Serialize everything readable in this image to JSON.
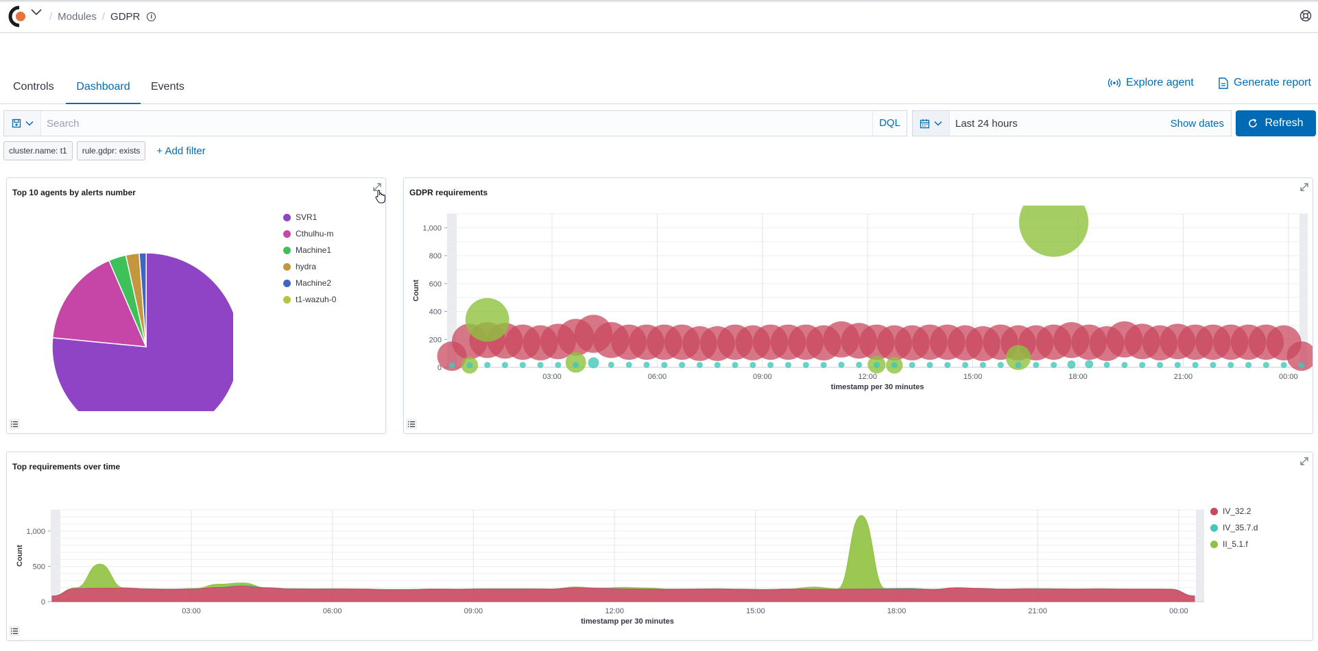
{
  "header": {
    "breadcrumbs": [
      "Modules",
      "GDPR"
    ],
    "logo_icon": "wazuh-logo-icon",
    "help_icon": "help-icon"
  },
  "tabs": [
    {
      "label": "Controls",
      "active": false
    },
    {
      "label": "Dashboard",
      "active": true
    },
    {
      "label": "Events",
      "active": false
    }
  ],
  "actions": {
    "explore_agent": "Explore agent",
    "generate_report": "Generate report"
  },
  "search": {
    "placeholder": "Search",
    "language": "DQL"
  },
  "date": {
    "range": "Last 24 hours",
    "show_dates": "Show dates",
    "refresh": "Refresh"
  },
  "filters": {
    "pills": [
      "cluster.name: t1",
      "rule.gdpr: exists"
    ],
    "add": "+ Add filter"
  },
  "panels": {
    "top_agents": {
      "title": "Top 10 agents by alerts number"
    },
    "gdpr_requirements": {
      "title": "GDPR requirements"
    },
    "top_requirements": {
      "title": "Top requirements over time"
    }
  },
  "colors": {
    "accent": "#006bb4",
    "svr1": "#8e44c4",
    "cthulhu": "#c546a6",
    "machine1": "#3fc15a",
    "hydra": "#c4973f",
    "machine2": "#3f64c4",
    "wazuh": "#b6c43f",
    "iv_32_2": "#c9485f",
    "iv_35_7_d": "#43c7b6",
    "ii_5_1_f": "#8fc23f"
  },
  "chart_data": [
    {
      "type": "pie",
      "title": "Top 10 agents by alerts number",
      "labels": [
        "SVR1",
        "Cthulhu-m",
        "Machine1",
        "hydra",
        "Machine2",
        "t1-wazuh-0"
      ],
      "values": [
        76.5,
        17,
        3,
        2.3,
        1.2,
        0
      ],
      "colors": [
        "#8e44c4",
        "#c546a6",
        "#3fc15a",
        "#c4973f",
        "#3f64c4",
        "#b6c43f"
      ],
      "legend": "right"
    },
    {
      "type": "scatter",
      "title": "GDPR requirements",
      "xlabel": "timestamp per 30 minutes",
      "ylabel": "Count",
      "ylim": [
        0,
        1100
      ],
      "yticks": [
        0,
        200,
        400,
        600,
        800,
        1000
      ],
      "ytick_labels": [
        "0",
        "200",
        "400",
        "600",
        "800",
        "1,000"
      ],
      "xticks": [
        "03:00",
        "06:00",
        "09:00",
        "12:00",
        "15:00",
        "18:00",
        "21:00",
        "00:00"
      ],
      "grid": true,
      "series": [
        {
          "name": "IV_32.2",
          "color": "#c9485f",
          "values": [
            80,
            185,
            195,
            190,
            180,
            175,
            185,
            215,
            240,
            195,
            180,
            180,
            180,
            180,
            170,
            170,
            180,
            175,
            180,
            180,
            180,
            175,
            200,
            190,
            180,
            175,
            175,
            180,
            180,
            175,
            170,
            180,
            175,
            175,
            180,
            195,
            180,
            170,
            200,
            185,
            175,
            185,
            180,
            180,
            180,
            180,
            180,
            175,
            80
          ]
        },
        {
          "name": "IV_35.7.d",
          "color": "#43c7b6",
          "values": [
            0,
            0,
            2,
            2,
            2,
            2,
            2,
            2,
            18,
            3,
            3,
            3,
            2,
            2,
            2,
            2,
            2,
            2,
            2,
            2,
            2,
            2,
            3,
            3,
            2,
            2,
            2,
            2,
            2,
            2,
            2,
            2,
            2,
            2,
            2,
            5,
            8,
            3,
            2,
            2,
            2,
            2,
            2,
            2,
            2,
            2,
            2,
            2,
            0
          ]
        },
        {
          "name": "II_5.1.f",
          "color": "#8fc23f",
          "values": [
            0,
            15,
            340,
            0,
            0,
            0,
            0,
            35,
            0,
            0,
            0,
            0,
            0,
            0,
            0,
            0,
            0,
            0,
            0,
            0,
            0,
            0,
            0,
            0,
            20,
            15,
            0,
            0,
            0,
            0,
            0,
            0,
            70,
            0,
            1040,
            0,
            0,
            0,
            0,
            0,
            0,
            0,
            0,
            0,
            0,
            0,
            0,
            0,
            0
          ]
        }
      ]
    },
    {
      "type": "area",
      "title": "Top requirements over time",
      "xlabel": "timestamp per 30 minutes",
      "ylabel": "Count",
      "ylim": [
        0,
        1300
      ],
      "yticks": [
        0,
        500,
        1000
      ],
      "ytick_labels": [
        "0",
        "500",
        "1,000"
      ],
      "xticks": [
        "03:00",
        "06:00",
        "09:00",
        "12:00",
        "15:00",
        "18:00",
        "21:00",
        "00:00"
      ],
      "grid": true,
      "legend": "right",
      "series": [
        {
          "name": "IV_32.2",
          "color": "#c9485f",
          "values": [
            80,
            185,
            190,
            190,
            180,
            175,
            180,
            200,
            220,
            195,
            180,
            178,
            180,
            178,
            170,
            170,
            178,
            175,
            180,
            180,
            180,
            178,
            195,
            188,
            180,
            176,
            175,
            178,
            180,
            175,
            170,
            178,
            175,
            175,
            178,
            180,
            180,
            172,
            195,
            185,
            176,
            182,
            180,
            178,
            180,
            178,
            178,
            175,
            80
          ]
        },
        {
          "name": "IV_35.7.d",
          "color": "#43c7b6",
          "values": [
            0,
            0,
            2,
            2,
            2,
            2,
            2,
            2,
            15,
            3,
            3,
            3,
            2,
            2,
            2,
            2,
            2,
            2,
            2,
            2,
            2,
            2,
            3,
            3,
            2,
            2,
            2,
            2,
            2,
            2,
            2,
            2,
            2,
            2,
            2,
            5,
            8,
            3,
            2,
            2,
            2,
            2,
            2,
            2,
            2,
            2,
            2,
            2,
            0
          ]
        },
        {
          "name": "II_5.1.f",
          "color": "#8fc23f",
          "values": [
            0,
            10,
            340,
            5,
            0,
            0,
            5,
            45,
            30,
            0,
            0,
            0,
            0,
            0,
            0,
            0,
            0,
            0,
            0,
            0,
            0,
            0,
            10,
            0,
            20,
            15,
            0,
            0,
            0,
            0,
            0,
            0,
            30,
            5,
            1040,
            0,
            0,
            0,
            0,
            0,
            0,
            0,
            0,
            0,
            0,
            0,
            0,
            0,
            0
          ]
        }
      ]
    }
  ]
}
